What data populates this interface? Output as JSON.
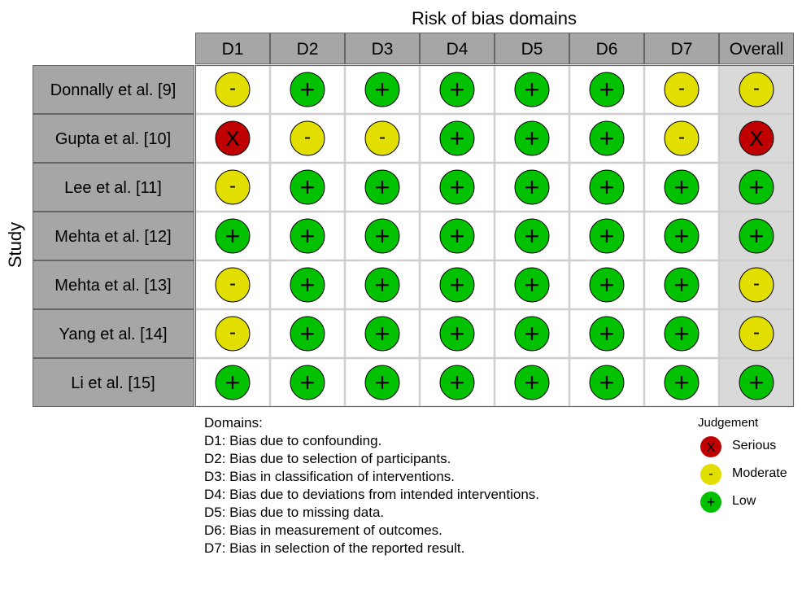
{
  "chart_data": {
    "type": "table",
    "title": "Risk of bias domains",
    "ylabel": "Study",
    "columns": [
      "D1",
      "D2",
      "D3",
      "D4",
      "D5",
      "D6",
      "D7",
      "Overall"
    ],
    "rows": [
      {
        "study": "Donnally et al. [9]",
        "judgements": [
          "Moderate",
          "Low",
          "Low",
          "Low",
          "Low",
          "Low",
          "Moderate",
          "Moderate"
        ]
      },
      {
        "study": "Gupta et al. [10]",
        "judgements": [
          "Serious",
          "Moderate",
          "Moderate",
          "Low",
          "Low",
          "Low",
          "Moderate",
          "Serious"
        ]
      },
      {
        "study": "Lee et al. [11]",
        "judgements": [
          "Moderate",
          "Low",
          "Low",
          "Low",
          "Low",
          "Low",
          "Low",
          "Low"
        ]
      },
      {
        "study": "Mehta et al. [12]",
        "judgements": [
          "Low",
          "Low",
          "Low",
          "Low",
          "Low",
          "Low",
          "Low",
          "Low"
        ]
      },
      {
        "study": "Mehta et al. [13]",
        "judgements": [
          "Moderate",
          "Low",
          "Low",
          "Low",
          "Low",
          "Low",
          "Low",
          "Moderate"
        ]
      },
      {
        "study": "Yang et al. [14]",
        "judgements": [
          "Moderate",
          "Low",
          "Low",
          "Low",
          "Low",
          "Low",
          "Low",
          "Moderate"
        ]
      },
      {
        "study": "Li et al. [15]",
        "judgements": [
          "Low",
          "Low",
          "Low",
          "Low",
          "Low",
          "Low",
          "Low",
          "Low"
        ]
      }
    ],
    "judgement_levels": [
      {
        "name": "Serious",
        "symbol": "X",
        "color": "#c00000"
      },
      {
        "name": "Moderate",
        "symbol": "-",
        "color": "#e2df00"
      },
      {
        "name": "Low",
        "symbol": "+",
        "color": "#02c100"
      }
    ],
    "legend_title": "Judgement",
    "domains_heading": "Domains:",
    "domain_descriptions": [
      "D1: Bias due to confounding.",
      "D2: Bias due to selection of participants.",
      "D3: Bias in classification of interventions.",
      "D4: Bias due to deviations from intended interventions.",
      "D5: Bias due to missing data.",
      "D6: Bias in measurement of outcomes.",
      "D7: Bias in selection of the reported result."
    ]
  },
  "colors": {
    "header_fill": "#a6a6a6",
    "study_fill": "#a6a6a6",
    "overall_fill": "#d9d9d9",
    "cell_fill": "#ffffff",
    "grid_line": "#cfcfcf",
    "border": "#666666"
  }
}
